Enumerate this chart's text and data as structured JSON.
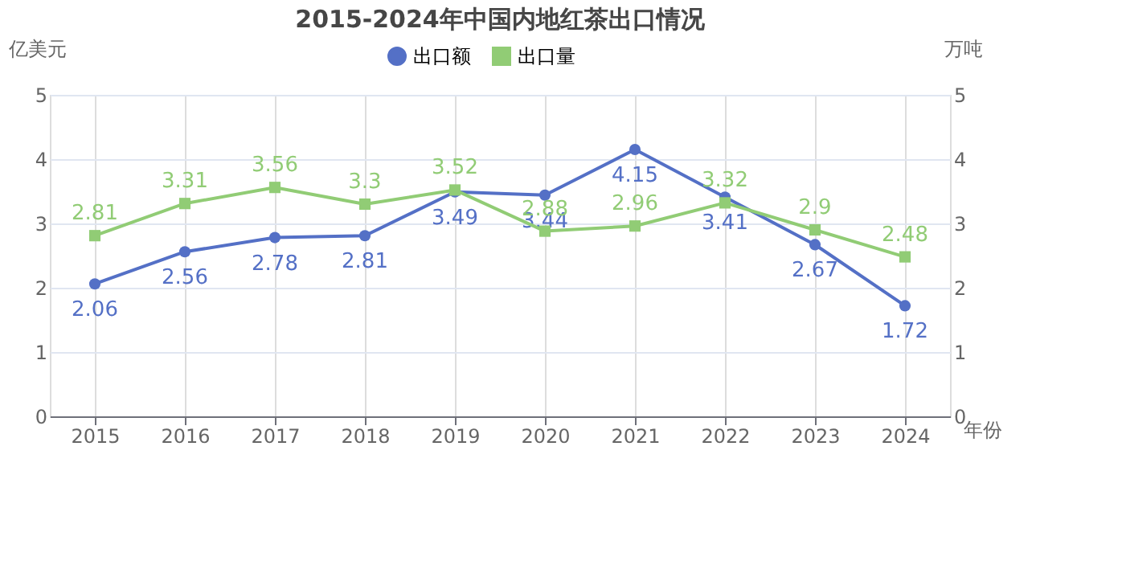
{
  "chart_data": {
    "type": "line",
    "title": "2015-2024年中国内地红茶出口情况",
    "xlabel": "年份",
    "ylabel": "亿美元",
    "y2label": "万吨",
    "categories": [
      "2015",
      "2016",
      "2017",
      "2018",
      "2019",
      "2020",
      "2021",
      "2022",
      "2023",
      "2024"
    ],
    "series": [
      {
        "name": "出口额",
        "color": "#5470c6",
        "marker": "circle",
        "values": [
          2.06,
          2.56,
          2.78,
          2.81,
          3.49,
          3.44,
          4.15,
          3.41,
          2.67,
          1.72
        ]
      },
      {
        "name": "出口量",
        "color": "#91cc75",
        "marker": "square",
        "axis": "y2",
        "values": [
          2.81,
          3.31,
          3.56,
          3.3,
          3.52,
          2.88,
          2.96,
          3.32,
          2.9,
          2.48
        ]
      }
    ],
    "ylim": [
      0,
      5
    ],
    "yticks": [
      0,
      1,
      2,
      3,
      4,
      5
    ],
    "y2lim": [
      0,
      5
    ],
    "y2ticks": [
      0,
      1,
      2,
      3,
      4,
      5
    ],
    "grid": true,
    "legend": "top",
    "data_labels": true,
    "line_style": "solid"
  }
}
